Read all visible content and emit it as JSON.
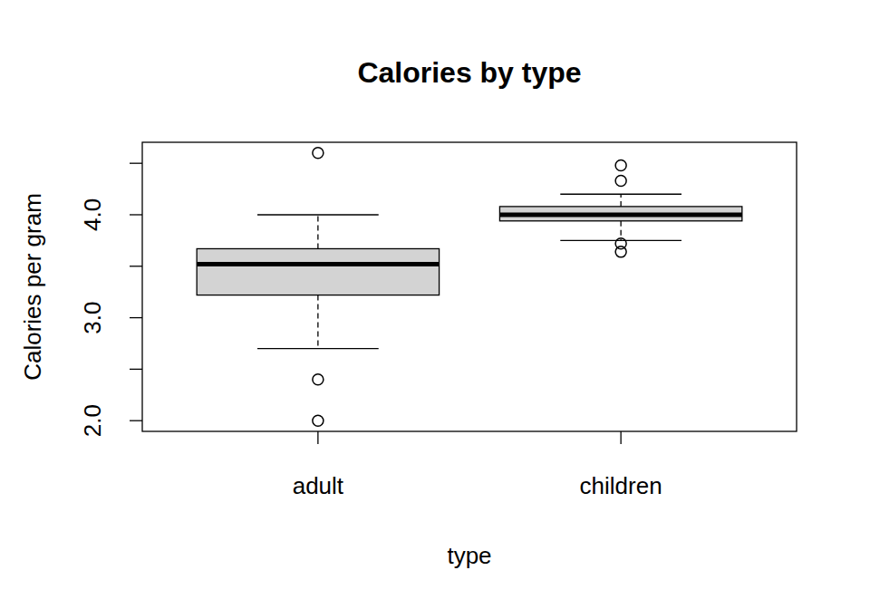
{
  "chart_data": {
    "type": "boxplot",
    "title": "Calories by type",
    "x_label": "type",
    "y_label": "Calories per gram",
    "categories": [
      "adult",
      "children"
    ],
    "color": "#d3d3d3",
    "boxes": [
      {
        "min": 2.7,
        "q1": 3.22,
        "median": 3.52,
        "q3": 3.67,
        "max": 4.0,
        "outliers": [
          4.6,
          2.4,
          2.0
        ]
      },
      {
        "min": 3.75,
        "q1": 3.94,
        "median": 4.0,
        "q3": 4.08,
        "max": 4.2,
        "outliers": [
          4.48,
          4.33,
          3.72,
          3.64
        ]
      }
    ],
    "ylim": [
      1.896,
      4.704
    ],
    "yticks": [
      {
        "value": 2.0,
        "label": "2.0"
      },
      {
        "value": 2.5,
        "label": null
      },
      {
        "value": 3.0,
        "label": "3.0"
      },
      {
        "value": 3.5,
        "label": null
      },
      {
        "value": 4.0,
        "label": "4.0"
      },
      {
        "value": 4.5,
        "label": null
      }
    ]
  }
}
